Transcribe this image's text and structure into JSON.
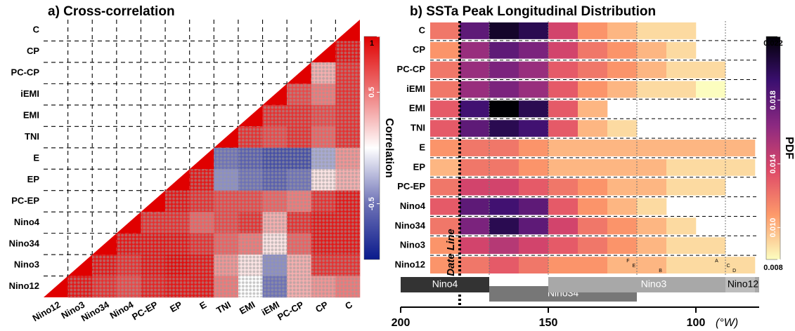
{
  "chart_data": [
    {
      "type": "matrix",
      "title": "a) Cross-correlation",
      "rows": [
        "C",
        "CP",
        "PC-CP",
        "iEMI",
        "EMI",
        "TNI",
        "E",
        "EP",
        "PC-EP",
        "Nino4",
        "Nino34",
        "Nino3",
        "Nino12"
      ],
      "columns": [
        "Nino12",
        "Nino3",
        "Nino34",
        "Nino4",
        "PC-EP",
        "EP",
        "E",
        "TNI",
        "EMI",
        "iEMI",
        "PC-CP",
        "CP",
        "C"
      ],
      "values": [
        [
          null,
          null,
          null,
          null,
          null,
          null,
          null,
          null,
          null,
          null,
          null,
          null,
          1
        ],
        [
          null,
          null,
          null,
          null,
          null,
          null,
          null,
          null,
          null,
          null,
          null,
          1,
          0.9
        ],
        [
          null,
          null,
          null,
          null,
          null,
          null,
          null,
          null,
          null,
          null,
          1,
          0.3,
          0.8
        ],
        [
          null,
          null,
          null,
          null,
          null,
          null,
          null,
          null,
          null,
          1,
          0.7,
          0.5,
          0.8
        ],
        [
          null,
          null,
          null,
          null,
          null,
          null,
          null,
          null,
          1,
          0.8,
          0.8,
          0.7,
          0.8
        ],
        [
          null,
          null,
          null,
          null,
          null,
          null,
          null,
          1,
          0.8,
          0.7,
          0.8,
          0.6,
          0.8
        ],
        [
          null,
          null,
          null,
          null,
          null,
          null,
          1,
          -0.5,
          -0.6,
          -0.7,
          -0.7,
          -0.3,
          0.4
        ],
        [
          null,
          null,
          null,
          null,
          null,
          1,
          0.9,
          -0.4,
          -0.5,
          -0.6,
          -0.5,
          0.1,
          0.3
        ],
        [
          null,
          null,
          null,
          null,
          1,
          0.9,
          0.8,
          0.7,
          0.7,
          0.6,
          0.5,
          0.8,
          0.9
        ],
        [
          null,
          null,
          null,
          1,
          0.8,
          0.8,
          0.6,
          0.7,
          0.8,
          0.3,
          0.8,
          0.9,
          0.9
        ],
        [
          null,
          null,
          1,
          0.9,
          0.9,
          0.9,
          0.8,
          0.6,
          0.5,
          0.1,
          0.6,
          0.9,
          0.9
        ],
        [
          null,
          1,
          0.9,
          0.8,
          0.9,
          0.95,
          0.9,
          0.4,
          0.1,
          -0.4,
          0.3,
          0.8,
          0.8
        ],
        [
          1,
          0.9,
          0.8,
          0.7,
          0.85,
          0.9,
          0.9,
          0.5,
          0.0,
          -0.5,
          0.3,
          0.4,
          0.5
        ]
      ],
      "clim": [
        -1,
        1
      ],
      "cticks": [
        1,
        0.5,
        -0.5
      ],
      "colorbar_label": "Correlation",
      "colormap": [
        "#0a1a8c",
        "#6e72b6",
        "#ffffff",
        "#ee7a7a",
        "#e00000"
      ]
    },
    {
      "type": "heatmap",
      "title": "b) SSTa Peak Longitudinal Distribution",
      "rows": [
        "C",
        "CP",
        "PC-CP",
        "iEMI",
        "EMI",
        "TNI",
        "E",
        "EP",
        "PC-EP",
        "Nino4",
        "Nino34",
        "Nino3",
        "Nino12"
      ],
      "bins": [
        190,
        180,
        170,
        160,
        150,
        140,
        130,
        120,
        110,
        100,
        90,
        80
      ],
      "values": [
        [
          0.012,
          0.018,
          0.021,
          0.02,
          0.014,
          0.011,
          0.01,
          0.009,
          0.009,
          null,
          null
        ],
        [
          0.011,
          0.016,
          0.018,
          0.017,
          0.014,
          0.012,
          0.011,
          0.01,
          0.009,
          null,
          null
        ],
        [
          0.012,
          0.016,
          0.017,
          0.016,
          0.013,
          0.012,
          0.011,
          0.01,
          0.009,
          0.009,
          null
        ],
        [
          0.012,
          0.016,
          0.017,
          0.016,
          0.013,
          0.011,
          0.01,
          0.009,
          0.009,
          0.008,
          null
        ],
        [
          0.013,
          0.019,
          0.022,
          0.02,
          0.013,
          0.01,
          null,
          null,
          null,
          null,
          null
        ],
        [
          0.013,
          0.018,
          0.02,
          0.019,
          0.013,
          0.01,
          0.009,
          null,
          null,
          null,
          null
        ],
        [
          0.011,
          0.012,
          0.012,
          0.011,
          0.01,
          0.01,
          0.01,
          0.01,
          0.01,
          0.01,
          0.01
        ],
        [
          0.01,
          0.012,
          0.012,
          0.011,
          0.01,
          0.01,
          0.01,
          0.01,
          0.009,
          0.009,
          0.009
        ],
        [
          0.012,
          0.014,
          0.014,
          0.013,
          0.012,
          0.011,
          0.01,
          0.01,
          0.009,
          0.009,
          null
        ],
        [
          0.013,
          0.018,
          0.019,
          0.018,
          0.013,
          0.011,
          0.01,
          0.009,
          null,
          null,
          null
        ],
        [
          0.012,
          0.017,
          0.02,
          0.018,
          0.014,
          0.012,
          0.011,
          0.01,
          0.009,
          null,
          null
        ],
        [
          0.011,
          0.014,
          0.015,
          0.014,
          0.013,
          0.012,
          0.011,
          0.01,
          0.009,
          0.009,
          null
        ],
        [
          0.011,
          0.012,
          0.013,
          0.012,
          0.011,
          0.011,
          0.01,
          0.01,
          0.009,
          0.009,
          0.009
        ]
      ],
      "xlim": [
        200,
        80
      ],
      "xticks": [
        200,
        150,
        100
      ],
      "xlabel": "(°W)",
      "clim": [
        0.008,
        0.022
      ],
      "cticks": [
        0.008,
        {
          "value": 0.01,
          "label": "0.010"
        },
        0.014,
        0.018,
        0.022
      ],
      "colorbar_label": "PDF",
      "colormap": [
        "#fcfdbf",
        "#fd9a6a",
        "#de4968",
        "#8c2981",
        "#3b0f70",
        "#000004"
      ],
      "guides": [
        170,
        150,
        120,
        90
      ],
      "annotations": [
        {
          "text": "Date Line",
          "x": 180
        }
      ],
      "markers": [
        {
          "label": "F",
          "x": 123
        },
        {
          "label": "E",
          "x": 121
        },
        {
          "label": "B",
          "x": 112
        },
        {
          "label": "A",
          "x": 93
        },
        {
          "label": "C",
          "x": 89
        },
        {
          "label": "D",
          "x": 87
        }
      ],
      "regions": [
        {
          "name": "Nino4",
          "range": [
            200,
            170
          ],
          "color": "#333333"
        },
        {
          "name": "Nino34",
          "range": [
            170,
            120
          ],
          "color": "#777777"
        },
        {
          "name": "Nino3",
          "range": [
            150,
            80
          ],
          "color": "#a8a8a8"
        },
        {
          "name": "Nino12",
          "range": [
            90,
            80
          ],
          "color": "#bdbdbd"
        }
      ]
    }
  ]
}
